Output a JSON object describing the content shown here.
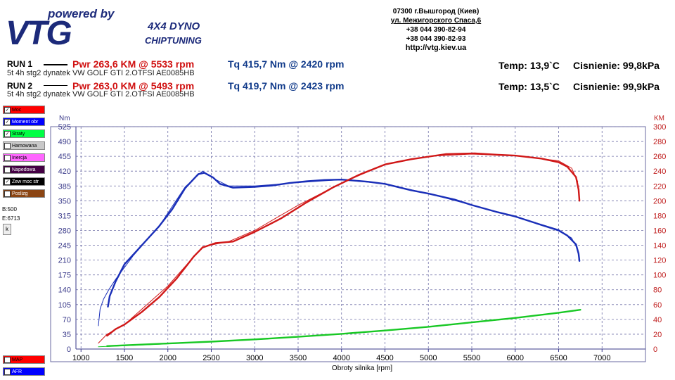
{
  "header": {
    "logo_tagline": "powered by",
    "logo_brand": "VTG",
    "logo_sub1": "4X4 DYNO",
    "logo_sub2": "CHIPTUNING",
    "contact": [
      "07300 г.Вышгород (Киев)",
      "ул. Межигорского Спаса,6",
      "+38 044 390-82-94",
      "+38 044 390-82-93",
      "http://vtg.kiev.ua"
    ]
  },
  "runs": [
    {
      "label": "RUN 1",
      "desc": "5t 4h stg2 dynatek VW GOLF GTI 2.OTFSI AE0085HB",
      "pwr": "Pwr  263,6 KM @ 5533 rpm",
      "tq": "Tq 415,7 Nm @ 2420 rpm",
      "temp": "Temp: 13,9`C",
      "press": "Cisnienie: 99,8kPa"
    },
    {
      "label": "RUN 2",
      "desc": "5t 4h stg2 dynatek VW GOLF GTI 2.OTFSI AE0085HB",
      "pwr": "Pwr  263,0 KM @ 5493 rpm",
      "tq": "Tq 419,7 Nm @ 2423 rpm",
      "temp": "Temp: 13,5`C",
      "press": "Cisnienie: 99,9kPa"
    }
  ],
  "panel": {
    "items": [
      {
        "label": "Moc",
        "checked": true,
        "color": "#ff0000"
      },
      {
        "label": "Moment obr",
        "checked": true,
        "color": "#0000ff"
      },
      {
        "label": "Straty",
        "checked": true,
        "color": "#00ff44"
      },
      {
        "label": "Hamowana",
        "checked": false,
        "color": "#c8c8c8"
      },
      {
        "label": "Inercja",
        "checked": false,
        "color": "#ff66ff"
      },
      {
        "label": "Napedowa",
        "checked": false,
        "color": "#440044"
      },
      {
        "label": "Zew moc str",
        "checked": true,
        "color": "#000000"
      },
      {
        "label": "Poslizg",
        "checked": false,
        "color": "#8b4513"
      }
    ],
    "b_value": "B:500",
    "e_value": "E:6713",
    "k_button": "k",
    "bottom_items": [
      {
        "label": "MAP",
        "checked": false,
        "color": "#ff0000"
      },
      {
        "label": "AFR",
        "checked": false,
        "color": "#0000ff"
      }
    ]
  },
  "chart_data": {
    "type": "line",
    "xlabel": "Obroty silnika [rpm]",
    "ylabel_left": "Nm",
    "ylabel_right": "KM",
    "xlim": [
      650,
      7500
    ],
    "ylim_left": [
      0,
      525
    ],
    "ylim_right": [
      0,
      300
    ],
    "x_ticks": [
      1000,
      1500,
      2000,
      2500,
      3000,
      3500,
      4000,
      4500,
      5000,
      5500,
      6000,
      6500,
      7000
    ],
    "y_left_ticks": [
      0,
      35,
      70,
      105,
      140,
      175,
      210,
      245,
      280,
      315,
      350,
      385,
      420,
      455,
      490,
      525
    ],
    "y_right_ticks": [
      0,
      20,
      40,
      60,
      80,
      100,
      120,
      140,
      160,
      180,
      200,
      220,
      240,
      260,
      280,
      300
    ],
    "grid": true,
    "series": [
      {
        "axis": "left",
        "color": "#1a2fb8",
        "width": 2.4,
        "points": [
          [
            1310,
            100
          ],
          [
            1330,
            125
          ],
          [
            1400,
            160
          ],
          [
            1500,
            200
          ],
          [
            1700,
            245
          ],
          [
            1900,
            290
          ],
          [
            2050,
            330
          ],
          [
            2200,
            380
          ],
          [
            2350,
            413
          ],
          [
            2420,
            416
          ],
          [
            2520,
            405
          ],
          [
            2600,
            390
          ],
          [
            2750,
            381
          ],
          [
            3000,
            383
          ],
          [
            3200,
            386
          ],
          [
            3400,
            392
          ],
          [
            3600,
            396
          ],
          [
            3800,
            399
          ],
          [
            4000,
            400
          ],
          [
            4300,
            395
          ],
          [
            4500,
            390
          ],
          [
            4800,
            375
          ],
          [
            5000,
            367
          ],
          [
            5300,
            353
          ],
          [
            5500,
            340
          ],
          [
            5800,
            323
          ],
          [
            6000,
            313
          ],
          [
            6300,
            293
          ],
          [
            6500,
            280
          ],
          [
            6600,
            268
          ],
          [
            6700,
            247
          ],
          [
            6730,
            225
          ],
          [
            6740,
            208
          ]
        ]
      },
      {
        "axis": "left",
        "color": "#1a2fb8",
        "width": 1,
        "points": [
          [
            1200,
            55
          ],
          [
            1220,
            95
          ],
          [
            1260,
            118
          ],
          [
            1320,
            140
          ],
          [
            1400,
            165
          ],
          [
            1600,
            220
          ],
          [
            1900,
            290
          ],
          [
            2200,
            383
          ],
          [
            2400,
            420
          ],
          [
            2550,
            400
          ],
          [
            2700,
            385
          ],
          [
            3000,
            385
          ],
          [
            3500,
            393
          ],
          [
            4000,
            400
          ],
          [
            4500,
            390
          ],
          [
            5000,
            367
          ],
          [
            5500,
            340
          ],
          [
            6000,
            313
          ],
          [
            6500,
            282
          ],
          [
            6650,
            262
          ],
          [
            6720,
            235
          ]
        ]
      },
      {
        "axis": "right",
        "color": "#d01818",
        "width": 2.4,
        "points": [
          [
            1300,
            18
          ],
          [
            1400,
            27
          ],
          [
            1500,
            33
          ],
          [
            1700,
            50
          ],
          [
            1900,
            70
          ],
          [
            2100,
            95
          ],
          [
            2300,
            125
          ],
          [
            2400,
            137
          ],
          [
            2550,
            143
          ],
          [
            2750,
            145
          ],
          [
            3000,
            158
          ],
          [
            3300,
            176
          ],
          [
            3600,
            198
          ],
          [
            3900,
            218
          ],
          [
            4200,
            235
          ],
          [
            4500,
            249
          ],
          [
            4800,
            256
          ],
          [
            5200,
            263
          ],
          [
            5533,
            264
          ],
          [
            5800,
            262
          ],
          [
            6000,
            261
          ],
          [
            6300,
            257
          ],
          [
            6500,
            252
          ],
          [
            6600,
            246
          ],
          [
            6700,
            232
          ],
          [
            6730,
            215
          ],
          [
            6740,
            200
          ]
        ]
      },
      {
        "axis": "right",
        "color": "#d01818",
        "width": 1,
        "points": [
          [
            1200,
            8
          ],
          [
            1300,
            20
          ],
          [
            1500,
            33
          ],
          [
            2000,
            85
          ],
          [
            2400,
            138
          ],
          [
            2700,
            145
          ],
          [
            3000,
            160
          ],
          [
            3500,
            194
          ],
          [
            4000,
            224
          ],
          [
            4500,
            249
          ],
          [
            5000,
            260
          ],
          [
            5493,
            263
          ],
          [
            6000,
            261
          ],
          [
            6500,
            254
          ],
          [
            6650,
            244
          ],
          [
            6720,
            226
          ]
        ]
      },
      {
        "axis": "right",
        "color": "#19c825",
        "width": 2.4,
        "points": [
          [
            1300,
            4
          ],
          [
            1500,
            5
          ],
          [
            2000,
            7.5
          ],
          [
            2500,
            10
          ],
          [
            3000,
            13
          ],
          [
            3500,
            16.5
          ],
          [
            4000,
            20.5
          ],
          [
            4500,
            25
          ],
          [
            5000,
            30
          ],
          [
            5500,
            36
          ],
          [
            6000,
            42
          ],
          [
            6500,
            49
          ],
          [
            6750,
            53
          ]
        ]
      },
      {
        "axis": "right",
        "color": "#19c825",
        "width": 1,
        "points": [
          [
            1200,
            3
          ],
          [
            1500,
            4.5
          ],
          [
            2000,
            7
          ],
          [
            3000,
            12.5
          ],
          [
            4000,
            20
          ],
          [
            5000,
            29.5
          ],
          [
            6000,
            41.5
          ],
          [
            6720,
            52
          ]
        ]
      }
    ]
  }
}
